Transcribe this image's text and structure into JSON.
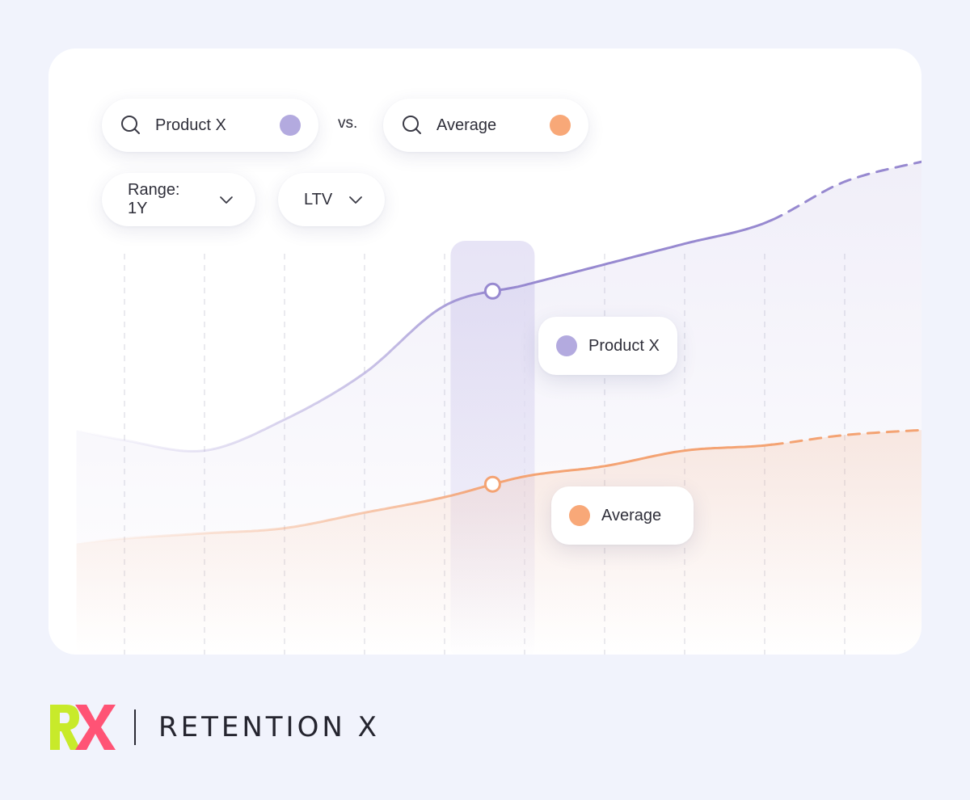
{
  "colors": {
    "background": "#f1f3fc",
    "product_x": "#9789d0",
    "product_x_dot": "#b3aadf",
    "average": "#f4a373",
    "average_dot": "#f8a878",
    "highlight": "#e7e4f6",
    "brand_green": "#c8ea2a",
    "brand_pink": "#ff4a6e"
  },
  "compare": {
    "left": {
      "label": "Product X",
      "icon": "search-icon"
    },
    "vs_label": "vs.",
    "right": {
      "label": "Average",
      "icon": "search-icon"
    }
  },
  "filters": {
    "range": {
      "label": "Range: 1Y",
      "icon": "chevron-down-icon"
    },
    "metric": {
      "label": "LTV",
      "icon": "chevron-down-icon"
    }
  },
  "tooltips": {
    "product_x": "Product X",
    "average": "Average"
  },
  "brand": {
    "logo_text": "RX",
    "name": "RETENTION X"
  },
  "chart_data": {
    "type": "line",
    "x": [
      0,
      1,
      2,
      3,
      4,
      5,
      6,
      7,
      8,
      9,
      10
    ],
    "xlim": [
      -0.6,
      10.0
    ],
    "ylim": [
      0,
      100
    ],
    "grid": {
      "vertical": true,
      "dashed": true
    },
    "highlight_x": 4.6,
    "series": [
      {
        "key": "product_x",
        "name": "Product X",
        "values": [
          43,
          41,
          47,
          56,
          69,
          73,
          77,
          81,
          85,
          93,
          97
        ],
        "forecast_from": 8.1,
        "highlight_value": 69
      },
      {
        "key": "average",
        "name": "Average",
        "values": [
          24,
          25,
          26,
          29,
          32,
          36,
          38,
          41,
          42,
          44,
          45
        ],
        "forecast_from": 8.1,
        "highlight_value": 33
      }
    ]
  }
}
